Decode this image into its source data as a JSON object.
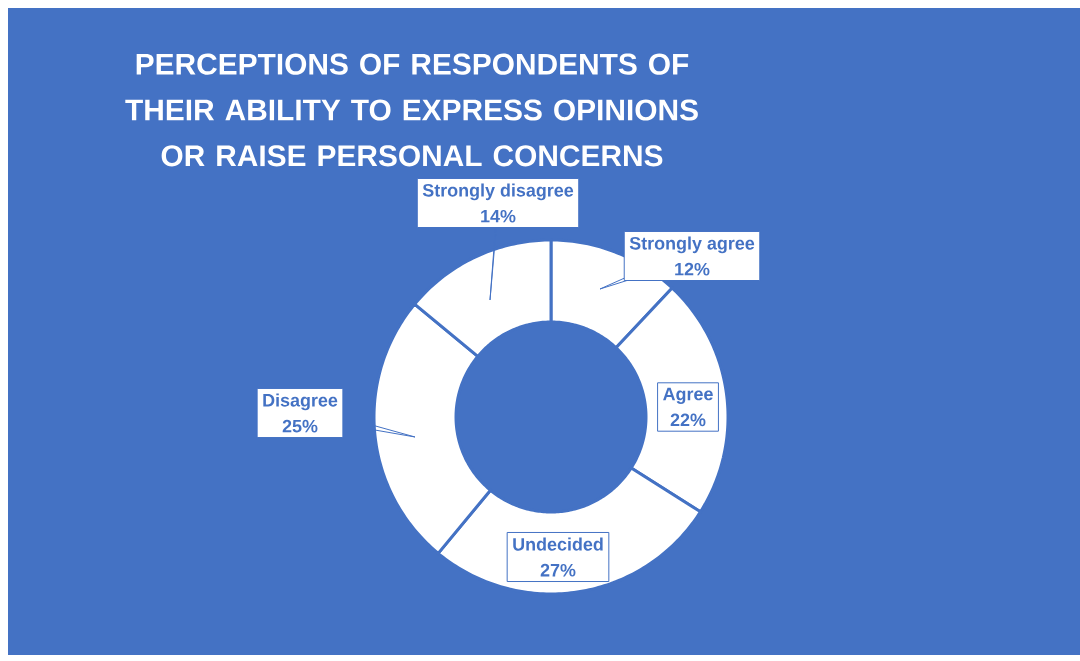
{
  "chart_data": {
    "type": "donut",
    "title": "PERCEPTIONS OF RESPONDENTS OF THEIR ABILITY TO EXPRESS OPINIONS OR RAISE PERSONAL CONCERNS",
    "categories": [
      "Strongly agree",
      "Agree",
      "Undecided",
      "Disagree",
      "Strongly disagree"
    ],
    "values": [
      12,
      22,
      27,
      25,
      14
    ],
    "colors": [
      "#ffffff",
      "#ffffff",
      "#ffffff",
      "#ffffff",
      "#ffffff"
    ],
    "value_labels": [
      "12%",
      "22%",
      "27%",
      "25%",
      "14%"
    ]
  }
}
